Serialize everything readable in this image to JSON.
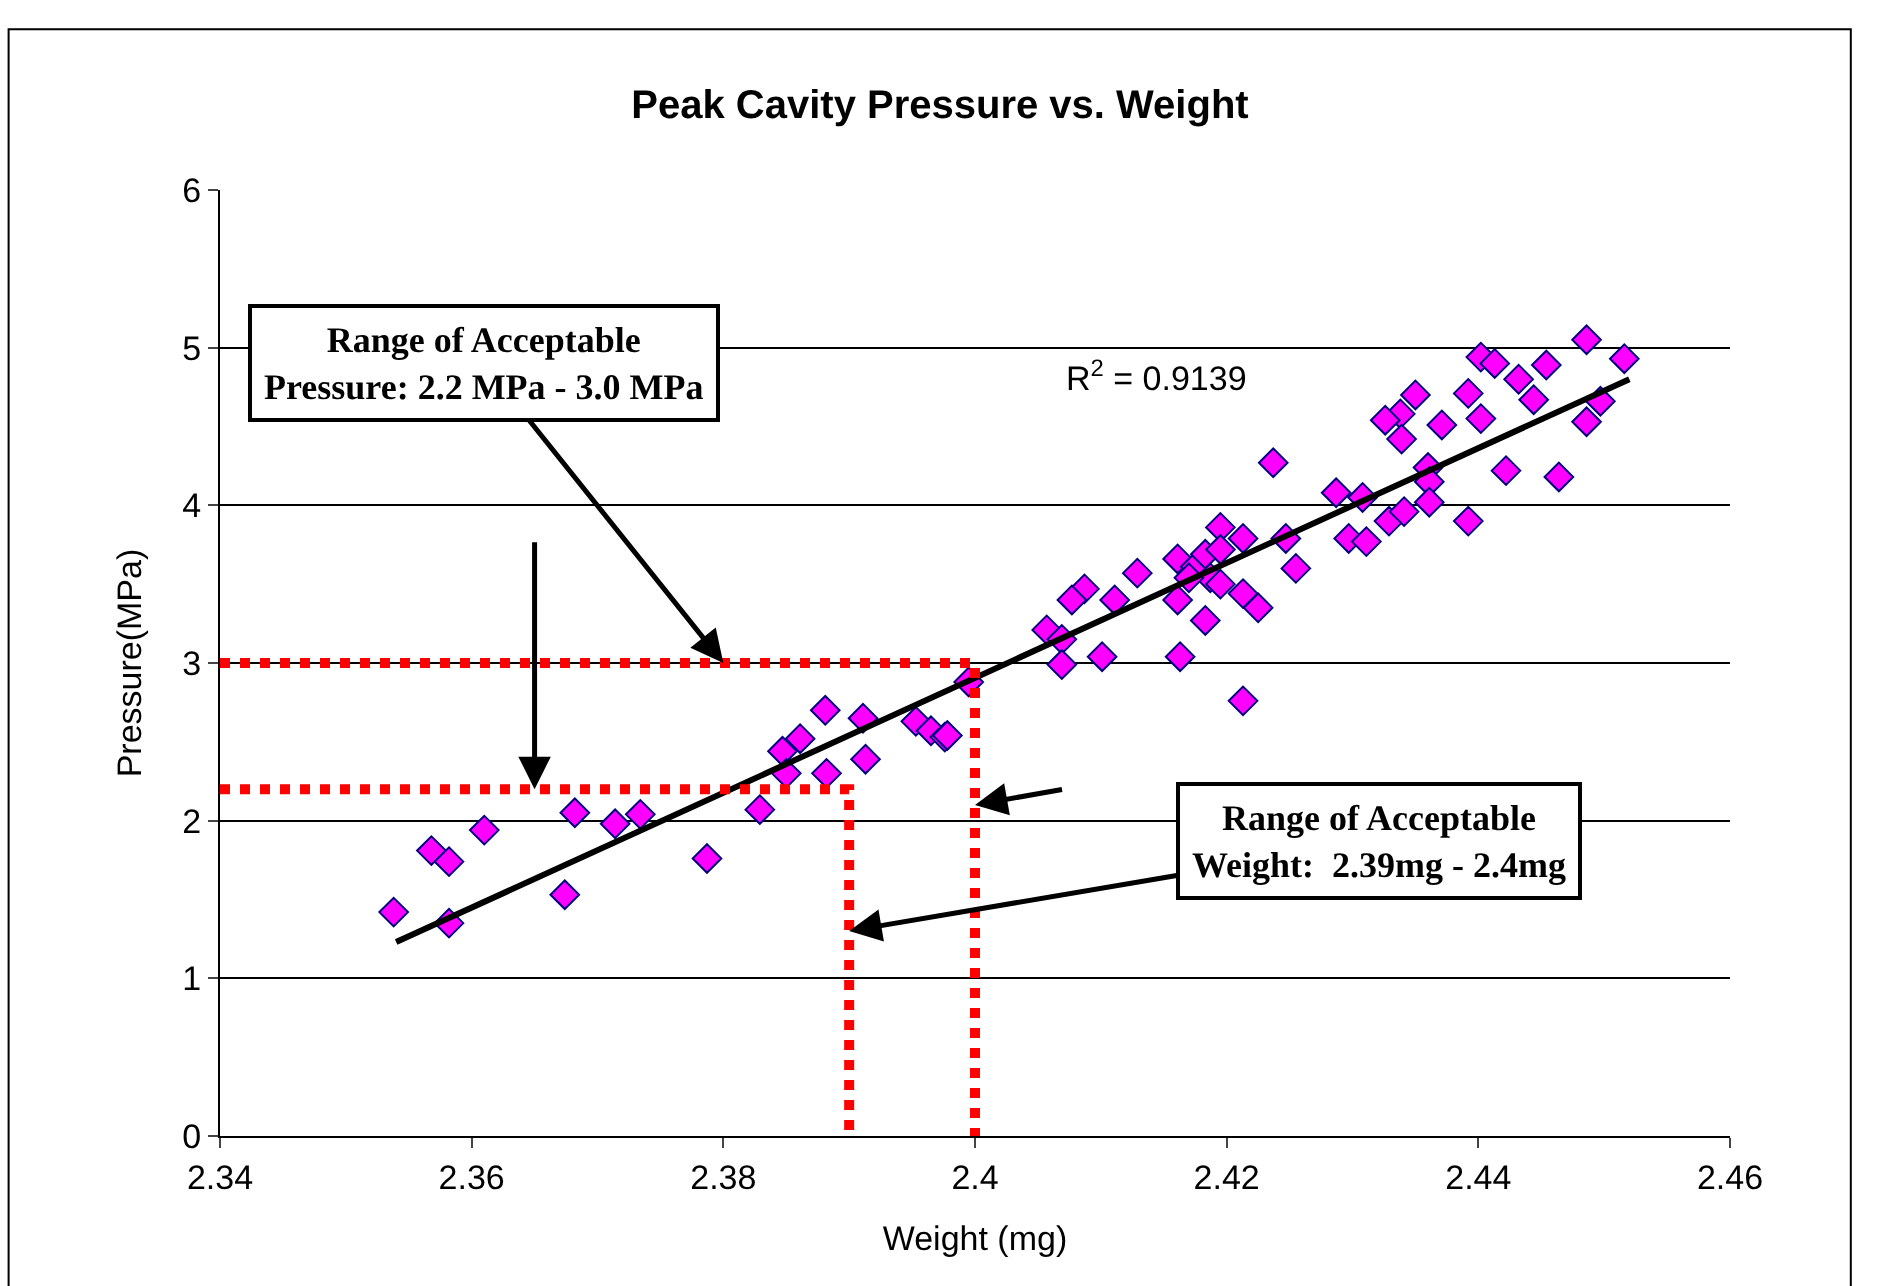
{
  "chart_data": {
    "type": "scatter",
    "title": "Peak Cavity Pressure vs. Weight",
    "xlabel": "Weight (mg)",
    "ylabel": "Pressure(MPa)",
    "xlim": [
      2.34,
      2.46
    ],
    "xticks": [
      2.34,
      2.36,
      2.38,
      {
        "value": 2.4,
        "label": "2.4"
      },
      2.42,
      2.44,
      2.46
    ],
    "ylim": [
      0,
      6
    ],
    "yticks": [
      0,
      1,
      2,
      3,
      4,
      5,
      6
    ],
    "grid": "y",
    "legend": false,
    "marker": "diamond",
    "series": [
      {
        "color": "#ff00ff",
        "x": [
          2.3538,
          2.3568,
          2.3582,
          2.3582,
          2.361,
          2.3674,
          2.3682,
          2.3714,
          2.3734,
          2.3787,
          2.3829,
          2.3847,
          2.3861,
          2.385,
          2.3881,
          2.3882,
          2.3911,
          2.3913,
          2.3953,
          2.3965,
          2.3976,
          2.3995,
          2.3978,
          2.4237,
          2.4287,
          2.4297,
          2.4195,
          2.4213,
          2.4247,
          2.4255,
          2.4161,
          2.4175,
          2.4183,
          2.4195,
          2.4187,
          2.417,
          2.4161,
          2.4195,
          2.4213,
          2.4225,
          2.4183,
          2.4129,
          2.4111,
          2.4087,
          2.4077,
          2.4057,
          2.4069,
          2.4069,
          2.4101,
          2.4163,
          2.4213,
          2.4402,
          2.4413,
          2.4486,
          2.4516,
          2.4454,
          2.4432,
          2.4444,
          2.4392,
          2.4402,
          2.4371,
          2.435,
          2.4338,
          2.4326,
          2.4339,
          2.4486,
          2.4497,
          2.436,
          2.4361,
          2.4361,
          2.4422,
          2.4464,
          2.4308,
          2.4311,
          2.4329,
          2.4341,
          2.4392
        ],
        "values": [
          1.42,
          1.81,
          1.74,
          1.35,
          1.94,
          1.53,
          2.05,
          1.98,
          2.04,
          1.76,
          2.07,
          2.44,
          2.52,
          2.3,
          2.7,
          2.3,
          2.65,
          2.39,
          2.63,
          2.57,
          2.53,
          2.88,
          2.54,
          4.27,
          4.08,
          3.79,
          3.86,
          3.79,
          3.79,
          3.6,
          3.66,
          3.61,
          3.69,
          3.72,
          3.54,
          3.54,
          3.4,
          3.5,
          3.44,
          3.35,
          3.27,
          3.57,
          3.4,
          3.47,
          3.4,
          3.21,
          3.15,
          2.99,
          3.04,
          3.04,
          2.76,
          4.94,
          4.9,
          5.05,
          4.93,
          4.89,
          4.8,
          4.67,
          4.71,
          4.55,
          4.51,
          4.7,
          4.58,
          4.54,
          4.42,
          4.53,
          4.66,
          4.24,
          4.15,
          4.02,
          4.22,
          4.18,
          4.05,
          3.77,
          3.9,
          3.96,
          3.9
        ]
      },
      {
        "type": "line",
        "marker": "none",
        "color": "#000000",
        "x": [
          2.354,
          2.452
        ],
        "values": [
          1.23,
          4.8
        ]
      },
      {
        "type": "line",
        "marker": "none",
        "color": "#ff0000",
        "line_style": "dotted",
        "x": [
          2.34,
          2.4,
          2.4
        ],
        "values": [
          3,
          3,
          0
        ]
      },
      {
        "type": "line",
        "marker": "none",
        "color": "#ff0000",
        "line_style": "dotted",
        "x": [
          2.34,
          2.39,
          2.39
        ],
        "values": [
          2.2,
          2.2,
          0
        ]
      }
    ],
    "annotations": [
      "R$^{2}$ = 0.9139",
      {
        "text": "Range of Acceptable\nPressure: 2.2 MPa - 3.0 MPa",
        "x": 2.38,
        "y": 3.0
      },
      {
        "text": "Range of Acceptable\nWeight:  2.39mg - 2.4mg",
        "x": 2.39,
        "y": 1.3
      }
    ]
  }
}
